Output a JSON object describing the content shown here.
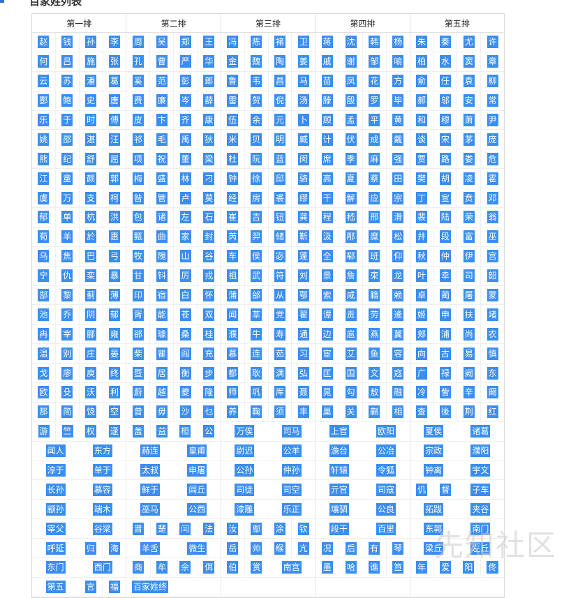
{
  "heading": "百家姓列表",
  "watermark": "先知社区",
  "headers": [
    "第一排",
    "第二排",
    "第三排",
    "第四排",
    "第五排"
  ],
  "single_rows": [
    [
      "赵",
      "钱",
      "孙",
      "李",
      "周",
      "吴",
      "郑",
      "王",
      "冯",
      "陈",
      "褚",
      "卫",
      "蒋",
      "沈",
      "韩",
      "杨",
      "朱",
      "秦",
      "尤",
      "许"
    ],
    [
      "何",
      "吕",
      "施",
      "张",
      "孔",
      "曹",
      "严",
      "华",
      "金",
      "魏",
      "陶",
      "姜",
      "戚",
      "谢",
      "邹",
      "喻",
      "柏",
      "水",
      "窦",
      "章"
    ],
    [
      "云",
      "苏",
      "潘",
      "葛",
      "奚",
      "范",
      "彭",
      "郎",
      "鲁",
      "韦",
      "昌",
      "马",
      "苗",
      "凤",
      "花",
      "方",
      "俞",
      "任",
      "袁",
      "柳"
    ],
    [
      "酆",
      "鲍",
      "史",
      "唐",
      "费",
      "廉",
      "岑",
      "薛",
      "雷",
      "贺",
      "倪",
      "汤",
      "滕",
      "殷",
      "罗",
      "毕",
      "郝",
      "邬",
      "安",
      "常"
    ],
    [
      "乐",
      "于",
      "时",
      "傅",
      "皮",
      "卞",
      "齐",
      "康",
      "伍",
      "余",
      "元",
      "卜",
      "顾",
      "孟",
      "平",
      "黄",
      "和",
      "穆",
      "萧",
      "尹"
    ],
    [
      "姚",
      "邵",
      "湛",
      "汪",
      "祁",
      "毛",
      "禹",
      "狄",
      "米",
      "贝",
      "明",
      "臧",
      "计",
      "伏",
      "成",
      "戴",
      "谈",
      "宋",
      "茅",
      "庞"
    ],
    [
      "熊",
      "纪",
      "舒",
      "屈",
      "项",
      "祝",
      "董",
      "梁",
      "杜",
      "阮",
      "蓝",
      "闵",
      "席",
      "季",
      "麻",
      "强",
      "贾",
      "路",
      "娄",
      "危"
    ],
    [
      "江",
      "童",
      "颜",
      "郭",
      "梅",
      "盛",
      "林",
      "刁",
      "钟",
      "徐",
      "邱",
      "骆",
      "高",
      "夏",
      "蔡",
      "田",
      "樊",
      "胡",
      "凌",
      "霍"
    ],
    [
      "虞",
      "万",
      "支",
      "柯",
      "昝",
      "管",
      "卢",
      "莫",
      "经",
      "房",
      "裘",
      "缪",
      "干",
      "解",
      "应",
      "宗",
      "丁",
      "宣",
      "贲",
      "邓"
    ],
    [
      "郁",
      "单",
      "杭",
      "洪",
      "包",
      "诸",
      "左",
      "石",
      "崔",
      "吉",
      "钮",
      "龚",
      "程",
      "嵇",
      "邢",
      "滑",
      "裴",
      "陆",
      "荣",
      "翁"
    ],
    [
      "荀",
      "羊",
      "於",
      "惠",
      "甄",
      "曲",
      "家",
      "封",
      "芮",
      "羿",
      "储",
      "靳",
      "汲",
      "邴",
      "糜",
      "松",
      "井",
      "段",
      "富",
      "巫"
    ],
    [
      "乌",
      "焦",
      "巴",
      "弓",
      "牧",
      "隗",
      "山",
      "谷",
      "车",
      "侯",
      "宓",
      "蓬",
      "全",
      "郗",
      "班",
      "仰",
      "秋",
      "仲",
      "伊",
      "宫"
    ],
    [
      "宁",
      "仇",
      "栾",
      "暴",
      "甘",
      "钭",
      "厉",
      "戎",
      "祖",
      "武",
      "符",
      "刘",
      "景",
      "詹",
      "束",
      "龙",
      "叶",
      "幸",
      "司",
      "韶"
    ],
    [
      "郜",
      "黎",
      "蓟",
      "薄",
      "印",
      "宿",
      "白",
      "怀",
      "蒲",
      "邰",
      "从",
      "鄂",
      "索",
      "咸",
      "籍",
      "赖",
      "卓",
      "蔺",
      "屠",
      "蒙"
    ],
    [
      "池",
      "乔",
      "阴",
      "郁",
      "胥",
      "能",
      "苍",
      "双",
      "闻",
      "莘",
      "党",
      "翟",
      "谭",
      "贡",
      "劳",
      "逄",
      "姬",
      "申",
      "扶",
      "堵"
    ],
    [
      "冉",
      "宰",
      "郦",
      "雍",
      "郤",
      "璩",
      "桑",
      "桂",
      "濮",
      "牛",
      "寿",
      "通",
      "边",
      "扈",
      "燕",
      "冀",
      "郏",
      "浦",
      "尚",
      "农"
    ],
    [
      "温",
      "别",
      "庄",
      "晏",
      "柴",
      "瞿",
      "阎",
      "充",
      "慕",
      "连",
      "茹",
      "习",
      "宦",
      "艾",
      "鱼",
      "容",
      "向",
      "古",
      "易",
      "慎"
    ],
    [
      "戈",
      "廖",
      "庾",
      "终",
      "暨",
      "居",
      "衡",
      "步",
      "都",
      "耿",
      "满",
      "弘",
      "匡",
      "国",
      "文",
      "寇",
      "广",
      "禄",
      "阙",
      "东"
    ],
    [
      "欧",
      "殳",
      "沃",
      "利",
      "蔚",
      "越",
      "夔",
      "隆",
      "师",
      "巩",
      "厍",
      "聂",
      "晁",
      "勾",
      "敖",
      "融",
      "冷",
      "訾",
      "辛",
      "阚"
    ],
    [
      "那",
      "简",
      "饶",
      "空",
      "曾",
      "毋",
      "沙",
      "乜",
      "养",
      "鞠",
      "须",
      "丰",
      "巢",
      "关",
      "蒯",
      "相",
      "查",
      "後",
      "荆",
      "红"
    ]
  ],
  "mixed_rows": [
    [
      [
        "游",
        "竺"
      ],
      [
        "权",
        "逯"
      ],
      [
        "盖",
        "益"
      ],
      [
        "桓",
        "公"
      ],
      [
        "万俟"
      ],
      [
        "司马"
      ],
      [
        "上官"
      ],
      [
        "欧阳"
      ],
      [
        "夏侯"
      ],
      [
        "诸葛"
      ]
    ],
    [
      [
        "闻人"
      ],
      [
        "东方"
      ],
      [
        "赫连"
      ],
      [
        "皇甫"
      ],
      [
        "尉迟"
      ],
      [
        "公羊"
      ],
      [
        "澹台"
      ],
      [
        "公冶"
      ],
      [
        "宗政"
      ],
      [
        "濮阳"
      ]
    ],
    [
      [
        "淳于"
      ],
      [
        "单于"
      ],
      [
        "太叔"
      ],
      [
        "申屠"
      ],
      [
        "公孙"
      ],
      [
        "仲孙"
      ],
      [
        "轩辕"
      ],
      [
        "令狐"
      ],
      [
        "钟离"
      ],
      [
        "宇文"
      ]
    ],
    [
      [
        "长孙"
      ],
      [
        "慕容"
      ],
      [
        "鲜于"
      ],
      [
        "闾丘"
      ],
      [
        "司徒"
      ],
      [
        "司空"
      ],
      [
        "亓官"
      ],
      [
        "司寇"
      ],
      [
        "仉",
        "督"
      ],
      [
        "子车"
      ]
    ],
    [
      [
        "颛孙"
      ],
      [
        "端木"
      ],
      [
        "巫马"
      ],
      [
        "公西"
      ],
      [
        "漆雕"
      ],
      [
        "乐正"
      ],
      [
        "壤驷"
      ],
      [
        "公良"
      ],
      [
        "拓跋"
      ],
      [
        "夹谷"
      ]
    ],
    [
      [
        "宰父"
      ],
      [
        "谷梁"
      ],
      [
        "晋",
        "楚"
      ],
      [
        "闫",
        "法"
      ],
      [
        "汝",
        "鄢"
      ],
      [
        "涂",
        "钦"
      ],
      [
        "段干"
      ],
      [
        "百里"
      ],
      [
        "东郭"
      ],
      [
        "南门"
      ]
    ],
    [
      [
        "呼延"
      ],
      [
        "归",
        "海"
      ],
      [
        "羊舌"
      ],
      [
        "微生"
      ],
      [
        "岳",
        "帅"
      ],
      [
        "缑",
        "亢"
      ],
      [
        "况",
        "后"
      ],
      [
        "有",
        "琴"
      ],
      [
        "梁丘"
      ],
      [
        "左丘"
      ]
    ],
    [
      [
        "东门"
      ],
      [
        "西门"
      ],
      [
        "商",
        "牟"
      ],
      [
        "佘",
        "佴"
      ],
      [
        "伯",
        "赏"
      ],
      [
        "南宫"
      ],
      [
        "墨",
        "哈"
      ],
      [
        "谯",
        "笪"
      ],
      [
        "年",
        "爱"
      ],
      [
        "阳",
        "佟"
      ]
    ],
    [
      [
        "第五"
      ],
      [
        "言",
        "福"
      ],
      [
        "百家姓终"
      ],
      []
    ]
  ]
}
